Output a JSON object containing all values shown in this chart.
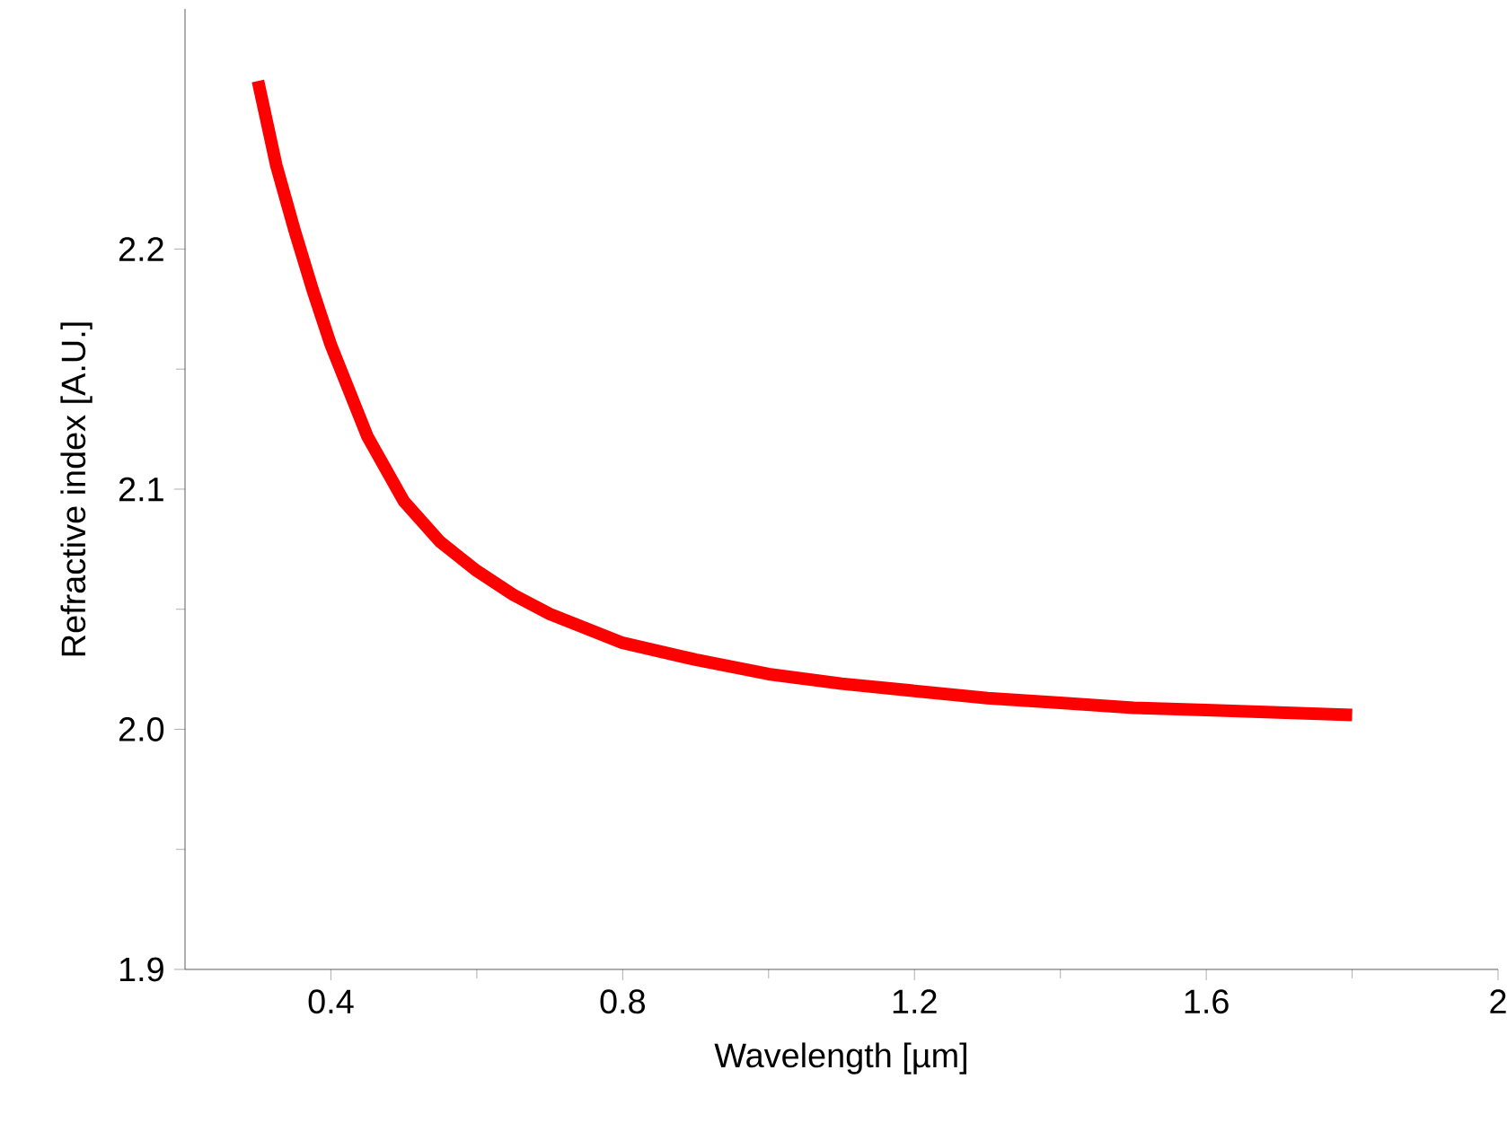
{
  "chart_data": {
    "type": "line",
    "xlabel": "Wavelength [µm]",
    "ylabel": "Refractive index [A.U.]",
    "x": [
      0.3,
      0.325,
      0.35,
      0.375,
      0.4,
      0.45,
      0.5,
      0.55,
      0.6,
      0.65,
      0.7,
      0.8,
      0.9,
      1.0,
      1.1,
      1.2,
      1.3,
      1.4,
      1.5,
      1.6,
      1.7,
      1.8
    ],
    "series": [
      {
        "color": "#ff0000",
        "values": [
          2.27,
          2.235,
          2.208,
          2.183,
          2.16,
          2.122,
          2.095,
          2.078,
          2.066,
          2.056,
          2.048,
          2.036,
          2.029,
          2.023,
          2.019,
          2.016,
          2.013,
          2.011,
          2.009,
          2.008,
          2.007,
          2.006
        ]
      }
    ],
    "xlim": [
      0.2,
      2
    ],
    "ylim": [
      1.9,
      2.3
    ],
    "xticks": [
      0.4,
      0.8,
      1.2,
      1.6,
      2
    ],
    "yticks": [
      1.9,
      {
        "value": 2.0,
        "label": "2.0"
      },
      2.1,
      2.2
    ],
    "marker": "none",
    "line_style": "solid"
  }
}
